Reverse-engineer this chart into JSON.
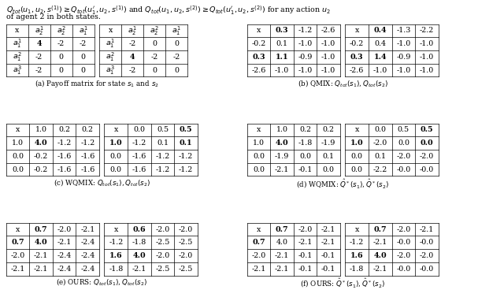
{
  "table_a1": {
    "headers": [
      "x",
      "a_2^1",
      "a_2^2",
      "a_1^1"
    ],
    "headers_bold": [
      false,
      true,
      false,
      false
    ],
    "rows": [
      [
        "a_1^1",
        "4",
        "-2",
        "-2"
      ],
      [
        "a_1^2",
        "-2",
        "0",
        "0"
      ],
      [
        "a_1^3",
        "-2",
        "0",
        "0"
      ]
    ],
    "rows_bold": [
      [
        true,
        true,
        false,
        false
      ],
      [
        false,
        false,
        false,
        false
      ],
      [
        false,
        false,
        false,
        false
      ]
    ]
  },
  "table_a2": {
    "headers": [
      "x",
      "a_2^1",
      "a_2^2",
      "a_1^1"
    ],
    "headers_bold": [
      false,
      false,
      false,
      true
    ],
    "rows": [
      [
        "a_1^1",
        "-2",
        "0",
        "0"
      ],
      [
        "a_1^2",
        "4",
        "-2",
        "-2"
      ],
      [
        "a_1^3",
        "-2",
        "0",
        "0"
      ]
    ],
    "rows_bold": [
      [
        false,
        false,
        false,
        false
      ],
      [
        false,
        true,
        false,
        false
      ],
      [
        true,
        false,
        false,
        false
      ]
    ]
  },
  "table_b1": {
    "headers": [
      "x",
      "0.3",
      "-1.2",
      "-2.6"
    ],
    "headers_bold": [
      false,
      true,
      false,
      false
    ],
    "rows": [
      [
        "-0.2",
        "0.1",
        "-1.0",
        "-1.0"
      ],
      [
        "0.3",
        "1.1",
        "-0.9",
        "-1.0"
      ],
      [
        "-2.6",
        "-1.0",
        "-1.0",
        "-1.0"
      ]
    ],
    "rows_bold": [
      [
        false,
        false,
        false,
        false
      ],
      [
        true,
        true,
        false,
        false
      ],
      [
        false,
        false,
        false,
        false
      ]
    ]
  },
  "table_b2": {
    "headers": [
      "x",
      "0.4",
      "-1.3",
      "-2.2"
    ],
    "headers_bold": [
      false,
      true,
      false,
      false
    ],
    "rows": [
      [
        "-0.2",
        "0.4",
        "-1.0",
        "-1.0"
      ],
      [
        "0.3",
        "1.4",
        "-0.9",
        "-1.0"
      ],
      [
        "-2.6",
        "-1.0",
        "-1.0",
        "-1.0"
      ]
    ],
    "rows_bold": [
      [
        false,
        false,
        false,
        false
      ],
      [
        true,
        true,
        false,
        false
      ],
      [
        false,
        false,
        false,
        false
      ]
    ]
  },
  "table_c1": {
    "headers": [
      "x",
      "1.0",
      "0.2",
      "0.2"
    ],
    "headers_bold": [
      false,
      false,
      false,
      false
    ],
    "rows": [
      [
        "1.0",
        "4.0",
        "-1.2",
        "-1.2"
      ],
      [
        "0.0",
        "-0.2",
        "-1.6",
        "-1.6"
      ],
      [
        "0.0",
        "-0.2",
        "-1.6",
        "-1.6"
      ]
    ],
    "rows_bold": [
      [
        false,
        true,
        false,
        false
      ],
      [
        false,
        false,
        false,
        false
      ],
      [
        false,
        false,
        false,
        false
      ]
    ]
  },
  "table_c2": {
    "headers": [
      "x",
      "0.0",
      "0.5",
      "0.5"
    ],
    "headers_bold": [
      false,
      false,
      false,
      true
    ],
    "rows": [
      [
        "1.0",
        "-1.2",
        "0.1",
        "0.1"
      ],
      [
        "0.0",
        "-1.6",
        "-1.2",
        "-1.2"
      ],
      [
        "0.0",
        "-1.6",
        "-1.2",
        "-1.2"
      ]
    ],
    "rows_bold": [
      [
        true,
        false,
        false,
        true
      ],
      [
        false,
        false,
        false,
        false
      ],
      [
        false,
        false,
        false,
        false
      ]
    ]
  },
  "table_d1": {
    "headers": [
      "x",
      "1.0",
      "0.2",
      "0.2"
    ],
    "headers_bold": [
      false,
      false,
      false,
      false
    ],
    "rows": [
      [
        "1.0",
        "4.0",
        "-1.8",
        "-1.9"
      ],
      [
        "0.0",
        "-1.9",
        "0.0",
        "0.1"
      ],
      [
        "0.0",
        "-2.1",
        "-0.1",
        "0.0"
      ]
    ],
    "rows_bold": [
      [
        false,
        true,
        false,
        false
      ],
      [
        false,
        false,
        false,
        false
      ],
      [
        false,
        false,
        false,
        false
      ]
    ]
  },
  "table_d2": {
    "headers": [
      "x",
      "0.0",
      "0.5",
      "0.5"
    ],
    "headers_bold": [
      false,
      false,
      false,
      true
    ],
    "rows": [
      [
        "1.0",
        "-2.0",
        "0.0",
        "0.0"
      ],
      [
        "0.0",
        "0.1",
        "-2.0",
        "-2.0"
      ],
      [
        "0.0",
        "-2.2",
        "-0.0",
        "-0.0"
      ]
    ],
    "rows_bold": [
      [
        true,
        false,
        false,
        true
      ],
      [
        false,
        false,
        false,
        false
      ],
      [
        false,
        false,
        false,
        false
      ]
    ]
  },
  "table_e1": {
    "headers": [
      "x",
      "0.7",
      "-2.0",
      "-2.1"
    ],
    "headers_bold": [
      false,
      true,
      false,
      false
    ],
    "rows": [
      [
        "0.7",
        "4.0",
        "-2.1",
        "-2.4"
      ],
      [
        "-2.0",
        "-2.1",
        "-2.4",
        "-2.4"
      ],
      [
        "-2.1",
        "-2.1",
        "-2.4",
        "-2.4"
      ]
    ],
    "rows_bold": [
      [
        true,
        true,
        false,
        false
      ],
      [
        false,
        false,
        false,
        false
      ],
      [
        false,
        false,
        false,
        false
      ]
    ]
  },
  "table_e2": {
    "headers": [
      "x",
      "0.6",
      "-2.0",
      "-2.0"
    ],
    "headers_bold": [
      false,
      true,
      false,
      false
    ],
    "rows": [
      [
        "-1.2",
        "-1.8",
        "-2.5",
        "-2.5"
      ],
      [
        "1.6",
        "4.0",
        "-2.0",
        "-2.0"
      ],
      [
        "-1.8",
        "-2.1",
        "-2.5",
        "-2.5"
      ]
    ],
    "rows_bold": [
      [
        false,
        false,
        false,
        false
      ],
      [
        true,
        true,
        false,
        false
      ],
      [
        false,
        false,
        false,
        false
      ]
    ]
  },
  "table_f1": {
    "headers": [
      "x",
      "0.7",
      "-2.0",
      "-2.1"
    ],
    "headers_bold": [
      false,
      true,
      false,
      false
    ],
    "rows": [
      [
        "0.7",
        "4.0",
        "-2.1",
        "-2.1"
      ],
      [
        "-2.0",
        "-2.1",
        "-0.1",
        "-0.1"
      ],
      [
        "-2.1",
        "-2.1",
        "-0.1",
        "-0.1"
      ]
    ],
    "rows_bold": [
      [
        true,
        false,
        false,
        false
      ],
      [
        false,
        false,
        false,
        false
      ],
      [
        false,
        false,
        false,
        false
      ]
    ]
  },
  "table_f2": {
    "headers": [
      "x",
      "0.7",
      "-2.0",
      "-2.1"
    ],
    "headers_bold": [
      false,
      true,
      false,
      false
    ],
    "rows": [
      [
        "-1.2",
        "-2.1",
        "-0.0",
        "-0.0"
      ],
      [
        "1.6",
        "4.0",
        "-2.0",
        "-2.0"
      ],
      [
        "-1.8",
        "-2.1",
        "-0.0",
        "-0.0"
      ]
    ],
    "rows_bold": [
      [
        false,
        false,
        false,
        false
      ],
      [
        true,
        true,
        false,
        false
      ],
      [
        false,
        false,
        false,
        false
      ]
    ]
  }
}
